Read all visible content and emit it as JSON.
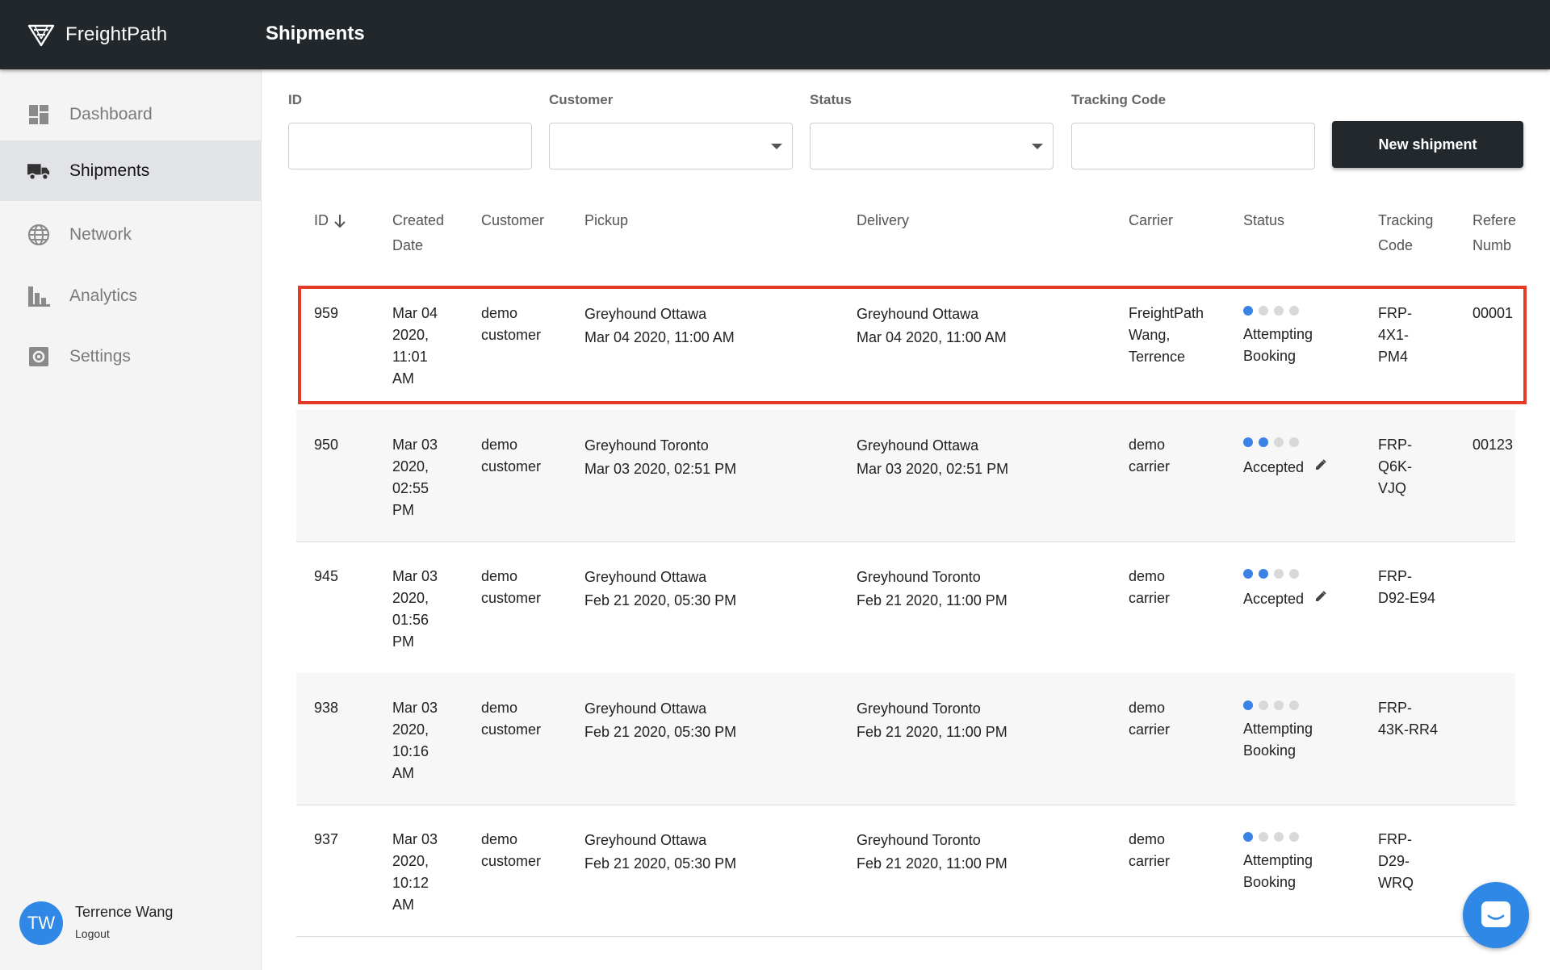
{
  "app": {
    "brand": "FreightPath",
    "page_title": "Shipments"
  },
  "sidebar": {
    "items": [
      {
        "label": "Dashboard",
        "icon": "dashboard-icon"
      },
      {
        "label": "Shipments",
        "icon": "truck-icon",
        "active": true
      },
      {
        "label": "Network",
        "icon": "globe-icon"
      },
      {
        "label": "Analytics",
        "icon": "bar-chart-icon"
      },
      {
        "label": "Settings",
        "icon": "gear-icon"
      }
    ],
    "user": {
      "initials": "TW",
      "name": "Terrence Wang",
      "logout": "Logout"
    }
  },
  "filters": {
    "id_label": "ID",
    "id_value": "",
    "customer_label": "Customer",
    "customer_value": "",
    "status_label": "Status",
    "status_value": "",
    "tracking_label": "Tracking Code",
    "tracking_value": "",
    "new_button": "New shipment"
  },
  "table": {
    "headers": {
      "id": "ID",
      "created_1": "Created",
      "created_2": "Date",
      "customer": "Customer",
      "pickup": "Pickup",
      "delivery": "Delivery",
      "carrier": "Carrier",
      "status": "Status",
      "tracking_1": "Tracking",
      "tracking_2": "Code",
      "reference_1": "Refere",
      "reference_2": "Numb"
    },
    "sort": "descending",
    "rows": [
      {
        "id": "959",
        "created": [
          "Mar 04",
          "2020,",
          "11:01",
          "AM"
        ],
        "customer": [
          "demo",
          "customer"
        ],
        "pickup_place": "Greyhound Ottawa",
        "pickup_time": "Mar 04 2020, 11:00 AM",
        "delivery_place": "Greyhound Ottawa",
        "delivery_time": "Mar 04 2020, 11:00 AM",
        "carrier": [
          "FreightPath",
          "Wang,",
          "Terrence"
        ],
        "status_step": 1,
        "status": [
          "Attempting",
          "Booking"
        ],
        "editable": false,
        "tracking": [
          "FRP-",
          "4X1-",
          "PM4"
        ],
        "reference": "00001",
        "highlighted": true
      },
      {
        "id": "950",
        "created": [
          "Mar 03",
          "2020,",
          "02:55",
          "PM"
        ],
        "customer": [
          "demo",
          "customer"
        ],
        "pickup_place": "Greyhound Toronto",
        "pickup_time": "Mar 03 2020, 02:51 PM",
        "delivery_place": "Greyhound Ottawa",
        "delivery_time": "Mar 03 2020, 02:51 PM",
        "carrier": [
          "demo",
          "carrier"
        ],
        "status_step": 2,
        "status": [
          "Accepted"
        ],
        "editable": true,
        "tracking": [
          "FRP-",
          "Q6K-",
          "VJQ"
        ],
        "reference": "00123"
      },
      {
        "id": "945",
        "created": [
          "Mar 03",
          "2020,",
          "01:56",
          "PM"
        ],
        "customer": [
          "demo",
          "customer"
        ],
        "pickup_place": "Greyhound Ottawa",
        "pickup_time": "Feb 21 2020, 05:30 PM",
        "delivery_place": "Greyhound Toronto",
        "delivery_time": "Feb 21 2020, 11:00 PM",
        "carrier": [
          "demo",
          "carrier"
        ],
        "status_step": 2,
        "status": [
          "Accepted"
        ],
        "editable": true,
        "tracking": [
          "FRP-",
          "D92-E94"
        ],
        "reference": ""
      },
      {
        "id": "938",
        "created": [
          "Mar 03",
          "2020,",
          "10:16",
          "AM"
        ],
        "customer": [
          "demo",
          "customer"
        ],
        "pickup_place": "Greyhound Ottawa",
        "pickup_time": "Feb 21 2020, 05:30 PM",
        "delivery_place": "Greyhound Toronto",
        "delivery_time": "Feb 21 2020, 11:00 PM",
        "carrier": [
          "demo",
          "carrier"
        ],
        "status_step": 1,
        "status": [
          "Attempting",
          "Booking"
        ],
        "editable": false,
        "tracking": [
          "FRP-",
          "43K-RR4"
        ],
        "reference": ""
      },
      {
        "id": "937",
        "created": [
          "Mar 03",
          "2020,",
          "10:12",
          "AM"
        ],
        "customer": [
          "demo",
          "customer"
        ],
        "pickup_place": "Greyhound Ottawa",
        "pickup_time": "Feb 21 2020, 05:30 PM",
        "delivery_place": "Greyhound Toronto",
        "delivery_time": "Feb 21 2020, 11:00 PM",
        "carrier": [
          "demo",
          "carrier"
        ],
        "status_step": 1,
        "status": [
          "Attempting",
          "Booking"
        ],
        "editable": false,
        "tracking": [
          "FRP-",
          "D29-",
          "WRQ"
        ],
        "reference": ""
      }
    ]
  },
  "colors": {
    "topbar": "#22272b",
    "accent": "#2f87e6",
    "status_dot": "#3b82e6",
    "highlight": "#e23b26"
  },
  "chat": {
    "icon": "chat-icon"
  }
}
